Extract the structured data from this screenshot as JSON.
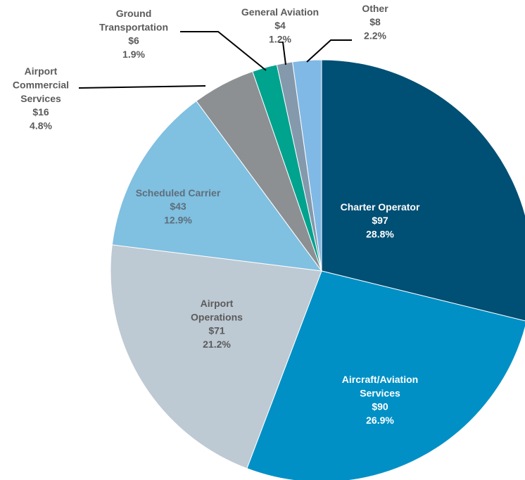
{
  "chart_data": {
    "type": "pie",
    "categories": [
      "Charter Operator",
      "Aircraft/Aviation\nServices",
      "Airport\nOperations",
      "Scheduled Carrier",
      "Airport\nCommercial\nServices",
      "Ground\nTransportation",
      "General Aviation",
      "Other"
    ],
    "amount_labels": [
      "$97",
      "$90",
      "$71",
      "$43",
      "$16",
      "$6",
      "$4",
      "$8"
    ],
    "values": [
      28.8,
      26.9,
      21.2,
      12.9,
      4.8,
      1.9,
      1.2,
      2.2
    ],
    "value_labels": [
      "28.8%",
      "26.9%",
      "21.2%",
      "12.9%",
      "4.8%",
      "1.9%",
      "1.2%",
      "2.2%"
    ],
    "colors": [
      "#004f74",
      "#0090c5",
      "#bdc9d3",
      "#80c0e0",
      "#8c9093",
      "#00a38e",
      "#8599ad",
      "#80b9e5"
    ]
  }
}
